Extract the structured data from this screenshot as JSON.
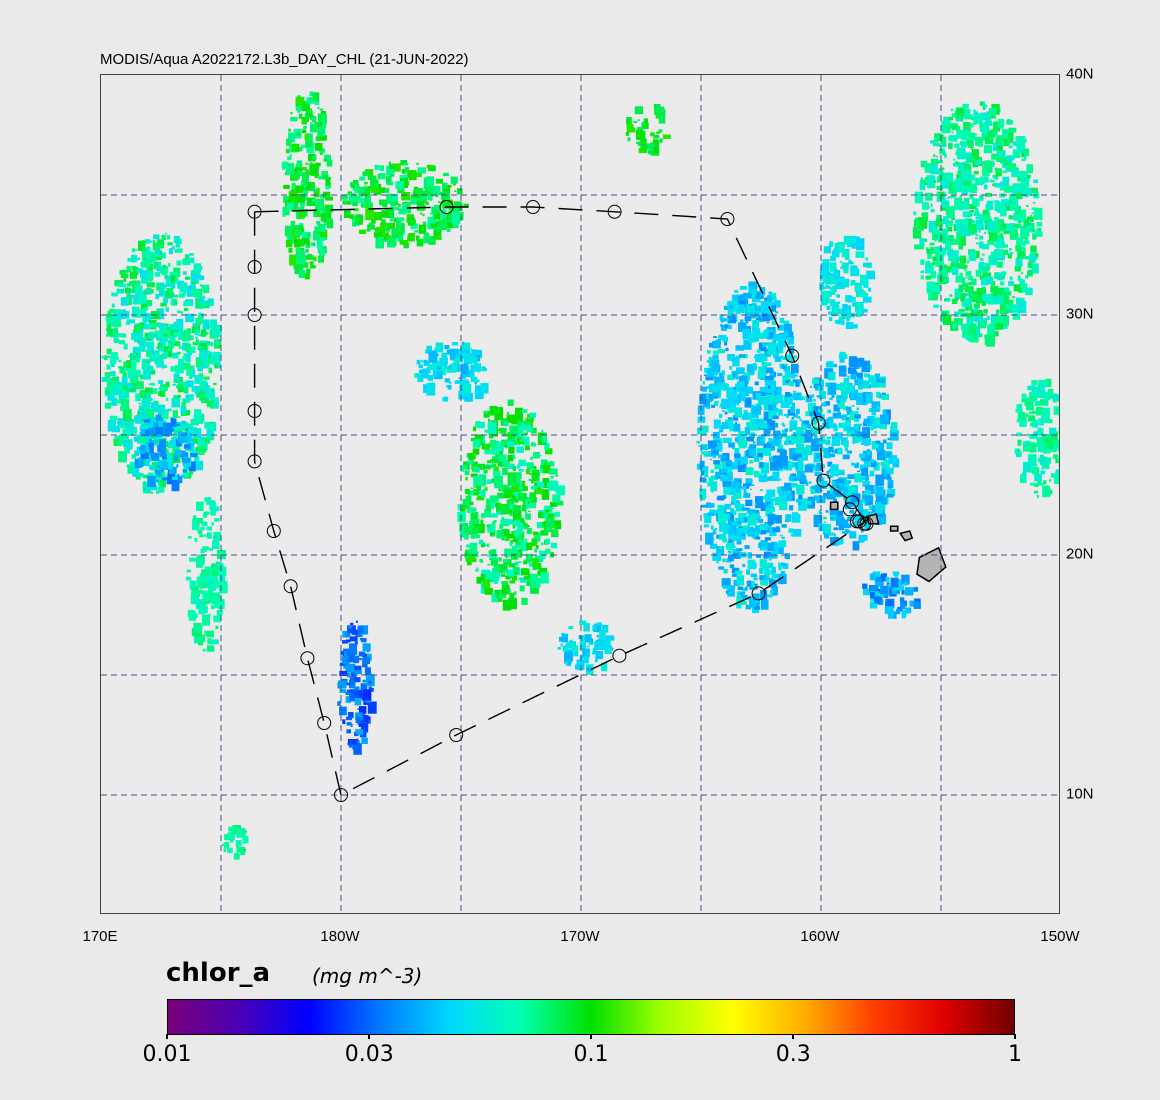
{
  "map": {
    "title": "MODIS/Aqua A2022172.L3b_DAY_CHL (21-JUN-2022)",
    "projection": "cylindrical",
    "extent": {
      "lon_min": 170,
      "lon_max": 210,
      "lat_min": 5,
      "lat_max": 40
    },
    "lon_labels": [
      {
        "text": "170E",
        "lon": 170
      },
      {
        "text": "180W",
        "lon": 180
      },
      {
        "text": "170W",
        "lon": 190
      },
      {
        "text": "160W",
        "lon": 200
      },
      {
        "text": "150W",
        "lon": 210
      }
    ],
    "lat_labels": [
      {
        "text": "40N",
        "lat": 40
      },
      {
        "text": "30N",
        "lat": 30
      },
      {
        "text": "20N",
        "lat": 20
      },
      {
        "text": "10N",
        "lat": 10
      }
    ],
    "grid_lons": [
      175,
      180,
      185,
      190,
      195,
      200,
      205
    ],
    "grid_lats": [
      35,
      30,
      25,
      20,
      15,
      10
    ],
    "grid_color": "#4a4a88",
    "background_color": "#ebebeb",
    "land_color": "#b4b4b4",
    "land_features": [
      "Hawaiian Islands"
    ],
    "track_color": "#000000",
    "track_waypoints": [
      {
        "lon": 176.4,
        "lat": 34.3
      },
      {
        "lon": 176.4,
        "lat": 32.0
      },
      {
        "lon": 176.4,
        "lat": 30.0
      },
      {
        "lon": 176.4,
        "lat": 26.0
      },
      {
        "lon": 176.4,
        "lat": 23.9
      },
      {
        "lon": 177.2,
        "lat": 21.0
      },
      {
        "lon": 177.9,
        "lat": 18.7
      },
      {
        "lon": 178.6,
        "lat": 15.7
      },
      {
        "lon": 179.3,
        "lat": 13.0
      },
      {
        "lon": 180.0,
        "lat": 10.0
      },
      {
        "lon": 184.8,
        "lat": 12.5
      },
      {
        "lon": 191.6,
        "lat": 15.8
      },
      {
        "lon": 197.4,
        "lat": 18.4
      },
      {
        "lon": 202.0,
        "lat": 21.5
      },
      {
        "lon": 201.5,
        "lat": 21.5
      },
      {
        "lon": 201.2,
        "lat": 21.9
      },
      {
        "lon": 200.9,
        "lat": 22.0
      },
      {
        "lon": 201.4,
        "lat": 21.7
      },
      {
        "lon": 201.6,
        "lat": 21.4
      },
      {
        "lon": 201.9,
        "lat": 21.5
      },
      {
        "lon": 201.5,
        "lat": 21.4
      },
      {
        "lon": 201.5,
        "lat": 21.3
      },
      {
        "lon": 201.8,
        "lat": 21.3
      },
      {
        "lon": 201.9,
        "lat": 21.4
      },
      {
        "lon": 201.9,
        "lat": 21.3
      },
      {
        "lon": 201.8,
        "lat": 21.3
      },
      {
        "lon": 201.9,
        "lat": 21.4
      },
      {
        "lon": 201.9,
        "lat": 21.3
      }
    ],
    "track_markers": [
      {
        "lon": 176.4,
        "lat": 34.3
      },
      {
        "lon": 176.4,
        "lat": 32.0
      },
      {
        "lon": 176.4,
        "lat": 30.0
      },
      {
        "lon": 176.4,
        "lat": 26.0
      },
      {
        "lon": 176.4,
        "lat": 23.9
      },
      {
        "lon": 177.2,
        "lat": 21.0
      },
      {
        "lon": 177.9,
        "lat": 18.7
      },
      {
        "lon": 178.6,
        "lat": 15.7
      },
      {
        "lon": 179.3,
        "lat": 13.0
      },
      {
        "lon": 180.0,
        "lat": 10.0
      },
      {
        "lon": 184.8,
        "lat": 12.5
      },
      {
        "lon": 191.6,
        "lat": 15.8
      },
      {
        "lon": 197.4,
        "lat": 18.4
      },
      {
        "lon": 201.5,
        "lat": 21.4
      },
      {
        "lon": 201.9,
        "lat": 21.3
      },
      {
        "lon": 201.2,
        "lat": 21.9
      },
      {
        "lon": 201.6,
        "lat": 21.4
      },
      {
        "lon": 201.8,
        "lat": 21.3
      },
      {
        "lon": 201.3,
        "lat": 22.2
      },
      {
        "lon": 200.1,
        "lat": 23.1
      },
      {
        "lon": 199.9,
        "lat": 25.5
      },
      {
        "lon": 198.8,
        "lat": 28.3
      },
      {
        "lon": 196.1,
        "lat": 34.0
      },
      {
        "lon": 191.4,
        "lat": 34.3
      },
      {
        "lon": 188.0,
        "lat": 34.5
      },
      {
        "lon": 184.4,
        "lat": 34.5
      }
    ],
    "track_loop": [
      {
        "lon": 176.4,
        "lat": 34.3
      },
      {
        "lon": 184.4,
        "lat": 34.5
      },
      {
        "lon": 188.0,
        "lat": 34.5
      },
      {
        "lon": 191.4,
        "lat": 34.3
      },
      {
        "lon": 196.1,
        "lat": 34.0
      },
      {
        "lon": 198.8,
        "lat": 28.3
      },
      {
        "lon": 199.9,
        "lat": 25.5
      },
      {
        "lon": 200.1,
        "lat": 23.1
      },
      {
        "lon": 201.3,
        "lat": 22.2
      },
      {
        "lon": 201.9,
        "lat": 21.3
      }
    ]
  },
  "colorbar": {
    "name": "chlor_a",
    "units": "(mg m^-3)",
    "scale": "log",
    "range": [
      0.01,
      1
    ],
    "tick_labels": [
      {
        "text": "0.01",
        "value": 0.01
      },
      {
        "text": "0.03",
        "value": 0.03
      },
      {
        "text": "0.1",
        "value": 0.1
      },
      {
        "text": "0.3",
        "value": 0.3
      },
      {
        "text": "1",
        "value": 1
      }
    ],
    "colors": [
      "#7a007a",
      "#4b00b4",
      "#0000ff",
      "#0078ff",
      "#00d8ff",
      "#00ffb0",
      "#00e000",
      "#a0ff00",
      "#ffff00",
      "#ffb000",
      "#ff4000",
      "#e00000",
      "#700000"
    ]
  },
  "chl_patches": [
    {
      "lon_min": 170.0,
      "lon_max": 174.8,
      "lat_min": 22.5,
      "lat_max": 33.5,
      "chl": [
        0.05,
        0.09
      ]
    },
    {
      "lon_min": 171.3,
      "lon_max": 173.8,
      "lat_min": 23.0,
      "lat_max": 26.0,
      "chl": [
        0.03,
        0.05
      ]
    },
    {
      "lon_min": 173.5,
      "lon_max": 175.0,
      "lat_min": 16.0,
      "lat_max": 22.5,
      "chl": [
        0.06,
        0.08
      ]
    },
    {
      "lon_min": 175.0,
      "lon_max": 176.0,
      "lat_min": 7.5,
      "lat_max": 8.8,
      "chl": [
        0.06,
        0.08
      ]
    },
    {
      "lon_min": 177.5,
      "lon_max": 179.5,
      "lat_min": 31.5,
      "lat_max": 39.5,
      "chl": [
        0.07,
        0.11
      ]
    },
    {
      "lon_min": 179.8,
      "lon_max": 181.2,
      "lat_min": 12.0,
      "lat_max": 17.5,
      "chl": [
        0.025,
        0.04
      ]
    },
    {
      "lon_min": 180.0,
      "lon_max": 185.2,
      "lat_min": 33.0,
      "lat_max": 36.5,
      "chl": [
        0.07,
        0.11
      ]
    },
    {
      "lon_min": 183.0,
      "lon_max": 186.0,
      "lat_min": 26.5,
      "lat_max": 29.0,
      "chl": [
        0.04,
        0.06
      ]
    },
    {
      "lon_min": 184.8,
      "lon_max": 189.0,
      "lat_min": 18.0,
      "lat_max": 26.5,
      "chl": [
        0.06,
        0.11
      ]
    },
    {
      "lon_min": 189.0,
      "lon_max": 191.3,
      "lat_min": 15.3,
      "lat_max": 17.3,
      "chl": [
        0.04,
        0.06
      ]
    },
    {
      "lon_min": 191.8,
      "lon_max": 193.5,
      "lat_min": 36.8,
      "lat_max": 39.0,
      "chl": [
        0.08,
        0.11
      ]
    },
    {
      "lon_min": 194.8,
      "lon_max": 199.2,
      "lat_min": 17.8,
      "lat_max": 31.5,
      "chl": [
        0.035,
        0.06
      ]
    },
    {
      "lon_min": 199.0,
      "lon_max": 203.0,
      "lat_min": 20.5,
      "lat_max": 28.5,
      "chl": [
        0.035,
        0.06
      ]
    },
    {
      "lon_min": 201.6,
      "lon_max": 204.0,
      "lat_min": 17.5,
      "lat_max": 19.5,
      "chl": [
        0.03,
        0.05
      ]
    },
    {
      "lon_min": 199.8,
      "lon_max": 202.0,
      "lat_min": 29.5,
      "lat_max": 33.5,
      "chl": [
        0.045,
        0.06
      ]
    },
    {
      "lon_min": 203.8,
      "lon_max": 209.0,
      "lat_min": 29.0,
      "lat_max": 39.0,
      "chl": [
        0.055,
        0.09
      ]
    },
    {
      "lon_min": 208.0,
      "lon_max": 210.0,
      "lat_min": 22.5,
      "lat_max": 27.5,
      "chl": [
        0.055,
        0.08
      ]
    }
  ]
}
